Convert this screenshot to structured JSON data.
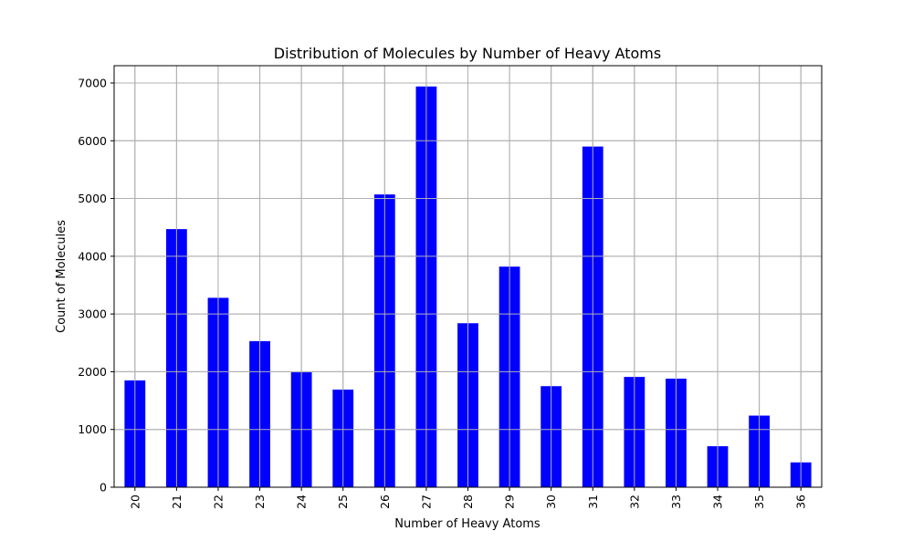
{
  "chart_data": {
    "type": "bar",
    "title": "Distribution of Molecules by Number of Heavy Atoms",
    "xlabel": "Number of Heavy Atoms",
    "ylabel": "Count of Molecules",
    "categories": [
      "20",
      "21",
      "22",
      "23",
      "24",
      "25",
      "26",
      "27",
      "28",
      "29",
      "30",
      "31",
      "32",
      "33",
      "34",
      "35",
      "36"
    ],
    "values": [
      1850,
      4470,
      3280,
      2530,
      1990,
      1690,
      5070,
      6940,
      2840,
      3820,
      1750,
      5900,
      1910,
      1880,
      710,
      1240,
      430
    ],
    "ylim": [
      0,
      7300
    ],
    "yticks": [
      0,
      1000,
      2000,
      3000,
      4000,
      5000,
      6000,
      7000
    ],
    "grid": true,
    "bar_color": "#0000ff"
  }
}
